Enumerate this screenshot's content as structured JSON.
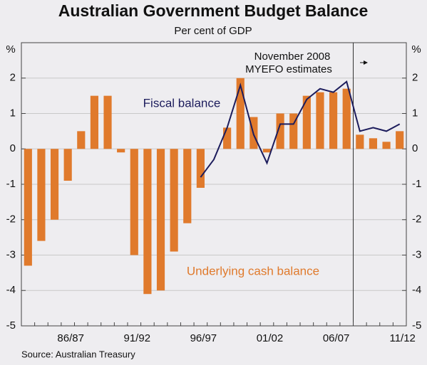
{
  "chart_data": {
    "type": "bar",
    "title": "Australian Government Budget Balance",
    "subtitle": "Per cent of GDP",
    "y_unit": "%",
    "source": "Source: Australian Treasury",
    "annotations": [
      "November 2008",
      "MYEFO estimates"
    ],
    "categories": [
      null,
      null,
      null,
      "86/87",
      null,
      null,
      null,
      null,
      "91/92",
      null,
      null,
      null,
      null,
      "96/97",
      null,
      null,
      null,
      null,
      "01/02",
      null,
      null,
      null,
      null,
      "06/07",
      null,
      null,
      null,
      null,
      "11/12"
    ],
    "series": [
      {
        "name": "Underlying cash balance",
        "type": "bar",
        "color": "#e07a2c",
        "values": [
          -3.3,
          -2.6,
          -2.0,
          -0.9,
          0.5,
          1.5,
          1.5,
          -0.1,
          -3.0,
          -4.1,
          -4.0,
          -2.9,
          -2.1,
          -1.1,
          0,
          0.6,
          2.0,
          0.9,
          -0.1,
          1.0,
          1.0,
          1.5,
          1.6,
          1.6,
          1.7,
          0.4,
          0.3,
          0.2,
          0.5
        ]
      },
      {
        "name": "Fiscal balance",
        "type": "line",
        "color": "#1c1c5c",
        "values": [
          null,
          null,
          null,
          null,
          null,
          null,
          null,
          null,
          null,
          null,
          null,
          null,
          null,
          -0.8,
          -0.3,
          0.6,
          1.8,
          0.4,
          -0.4,
          0.7,
          0.7,
          1.4,
          1.7,
          1.6,
          1.9,
          0.5,
          0.6,
          0.5,
          0.7
        ]
      }
    ],
    "ylim": [
      -5,
      3
    ],
    "yticks": [
      -5,
      -4,
      -3,
      -2,
      -1,
      0,
      1,
      2
    ],
    "grid": true
  }
}
